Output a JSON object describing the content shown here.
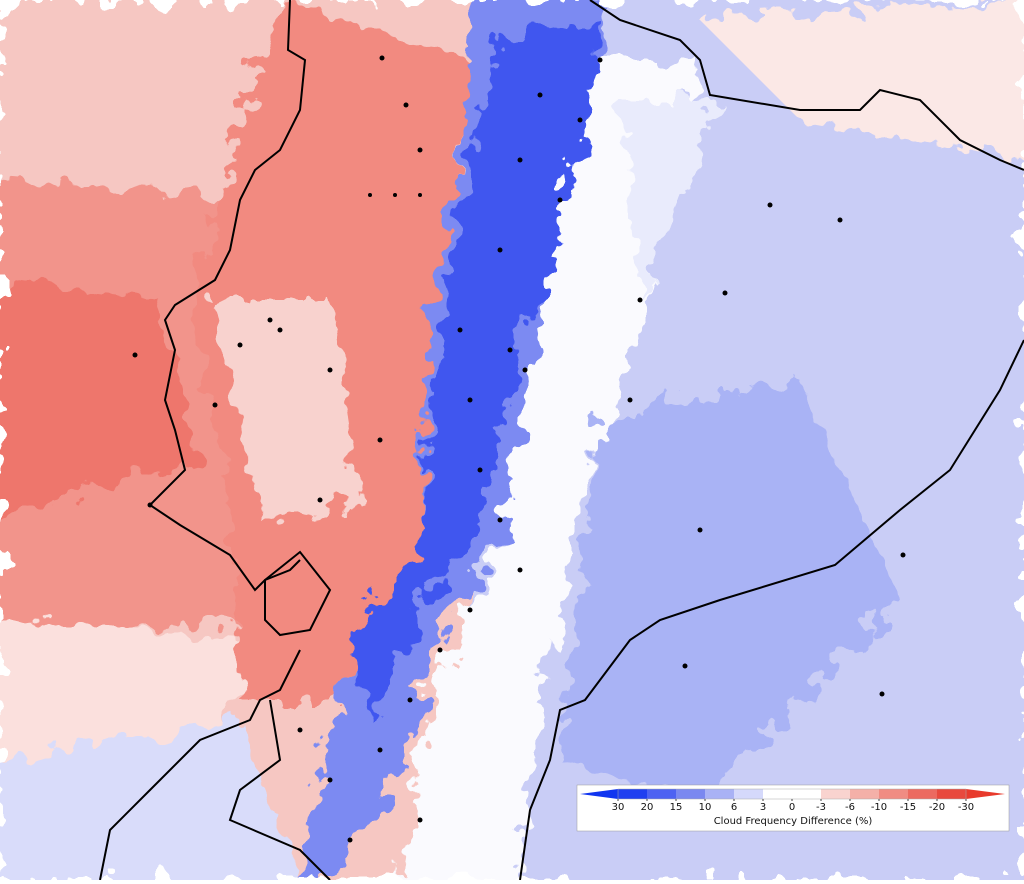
{
  "colorbar": {
    "label": "Cloud Frequency Difference (%)",
    "ticks": [
      30,
      20,
      15,
      10,
      6,
      3,
      0,
      -3,
      -6,
      -10,
      -15,
      -20,
      -30
    ],
    "colors": [
      "#1f3ff0",
      "#4d62f2",
      "#7a88f0",
      "#a9b2f5",
      "#d5d9fb",
      "#ffffff",
      "#ffffff",
      "#f9d3cf",
      "#f4b0a8",
      "#f08c83",
      "#ec6a60",
      "#e8493d"
    ],
    "under_color": "#1035f0",
    "over_color": "#e83a2c"
  }
}
